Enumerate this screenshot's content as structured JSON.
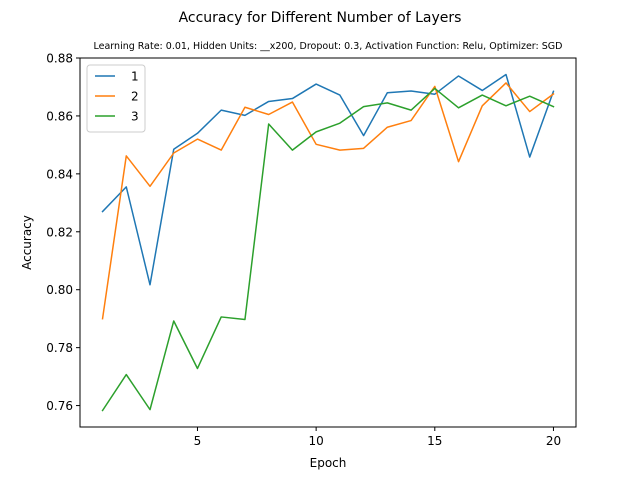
{
  "chart_data": {
    "type": "line",
    "title": "Accuracy for Different Number of Layers",
    "subtitle": "Learning Rate: 0.01, Hidden Units: __x200, Dropout: 0.3, Activation Function: Relu, Optimizer: SGD",
    "xlabel": "Epoch",
    "ylabel": "Accuracy",
    "xlim": [
      0.05,
      20.95
    ],
    "ylim": [
      0.7526,
      0.88
    ],
    "xticks": [
      5,
      10,
      15,
      20
    ],
    "yticks": [
      0.76,
      0.78,
      0.8,
      0.82,
      0.84,
      0.86,
      0.88
    ],
    "ytick_labels": [
      "0.76",
      "0.78",
      "0.80",
      "0.82",
      "0.84",
      "0.86",
      "0.88"
    ],
    "grid": false,
    "legend_position": "top-left",
    "x": [
      1,
      2,
      3,
      4,
      5,
      6,
      7,
      8,
      9,
      10,
      11,
      12,
      13,
      14,
      15,
      16,
      17,
      18,
      19,
      20
    ],
    "series": [
      {
        "name": "1",
        "color": "#1f77b4",
        "values": [
          0.827,
          0.8355,
          0.8017,
          0.8485,
          0.854,
          0.862,
          0.8602,
          0.865,
          0.866,
          0.871,
          0.8672,
          0.8532,
          0.868,
          0.8686,
          0.8675,
          0.8738,
          0.8688,
          0.8743,
          0.8458,
          0.8685
        ]
      },
      {
        "name": "2",
        "color": "#ff7f0e",
        "values": [
          0.79,
          0.8462,
          0.8357,
          0.8472,
          0.852,
          0.8482,
          0.863,
          0.8605,
          0.8648,
          0.8502,
          0.8482,
          0.8488,
          0.8561,
          0.8584,
          0.8702,
          0.8442,
          0.8635,
          0.8714,
          0.8615,
          0.8676
        ]
      },
      {
        "name": "3",
        "color": "#2ca02c",
        "values": [
          0.7583,
          0.7707,
          0.7586,
          0.7892,
          0.7728,
          0.7906,
          0.7897,
          0.8572,
          0.8482,
          0.8545,
          0.8575,
          0.8632,
          0.8645,
          0.862,
          0.8695,
          0.8628,
          0.8672,
          0.8635,
          0.8668,
          0.8632
        ]
      }
    ]
  }
}
